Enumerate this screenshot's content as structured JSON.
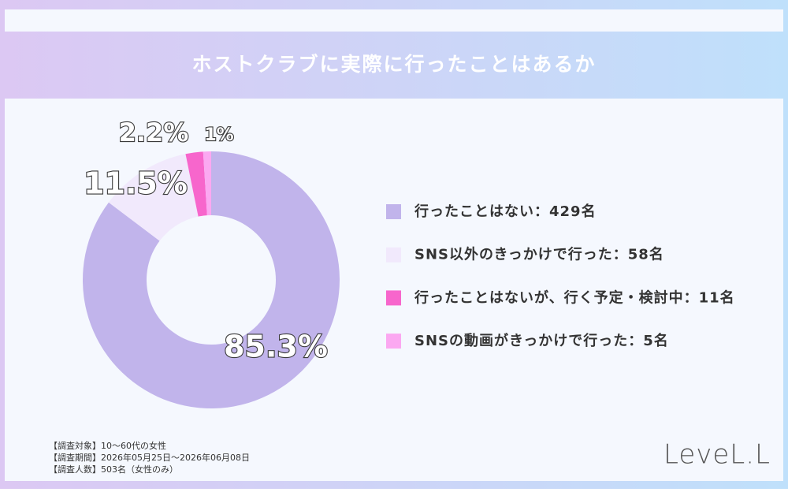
{
  "chart_data": {
    "type": "donut",
    "title": "ホストクラブに実際に行ったことはあるか",
    "categories": [
      "行ったことはない：429名",
      "SNS以外のきっかけで行った：58名",
      "行ったことはないが、行く予定・検討中：11名",
      "SNSの動画がきっかけで行った：5名"
    ],
    "values": [
      85.3,
      11.5,
      2.2,
      1
    ],
    "value_labels": [
      "85.3%",
      "11.5%",
      "2.2%",
      "1%"
    ],
    "colors": [
      "#c1b4eb",
      "#f1e9fc",
      "#f766cc",
      "#fba8f1"
    ]
  },
  "notes": [
    "【調査対象】10～60代の女性",
    "【調査期間】2026年05月25日～2026年06月08日",
    "【調査人数】503名（女性のみ）"
  ],
  "logo": "LeveL.L"
}
